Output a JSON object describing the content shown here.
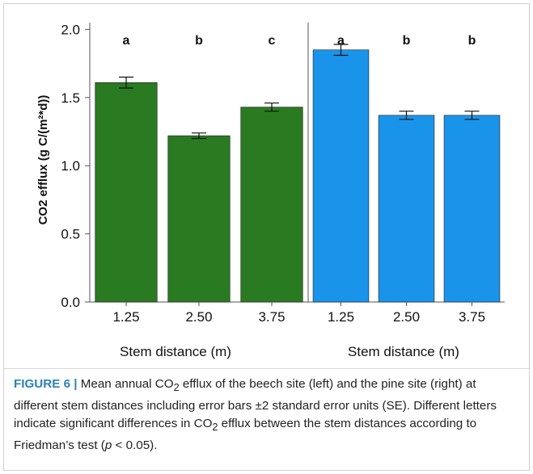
{
  "chart_data": [
    {
      "type": "bar",
      "panel": "beech site (left)",
      "categories": [
        "1.25",
        "2.50",
        "3.75"
      ],
      "values": [
        1.61,
        1.22,
        1.43
      ],
      "error": [
        0.04,
        0.02,
        0.03
      ],
      "letters": [
        "a",
        "b",
        "c"
      ],
      "color": "#2a7a22",
      "xlabel": "Stem distance (m)",
      "ylabel": "CO2 efflux (g C/(m²*d))",
      "ylim": [
        0,
        2.05
      ],
      "yticks": [
        "0.0",
        "0.5",
        "1.0",
        "1.5",
        "2.0"
      ],
      "grid": false
    },
    {
      "type": "bar",
      "panel": "pine site (right)",
      "categories": [
        "1.25",
        "2.50",
        "3.75"
      ],
      "values": [
        1.85,
        1.37,
        1.37
      ],
      "error": [
        0.04,
        0.03,
        0.03
      ],
      "letters": [
        "a",
        "b",
        "b"
      ],
      "color": "#1a94ea",
      "xlabel": "Stem distance (m)",
      "ylabel": "",
      "ylim": [
        0,
        2.05
      ],
      "grid": false
    }
  ],
  "caption": {
    "label": "FIGURE 6 |",
    "p1": " Mean annual CO",
    "sub1": "2",
    "p2": " efflux of the beech site (left) and the pine site (right) at different stem distances including error bars ±2 standard error units (SE). Different letters indicate significant differences in CO",
    "sub2": "2",
    "p3": " efflux between the stem distances according to Friedman’s test (",
    "pvar": "p",
    "p4": " < 0.05)."
  }
}
